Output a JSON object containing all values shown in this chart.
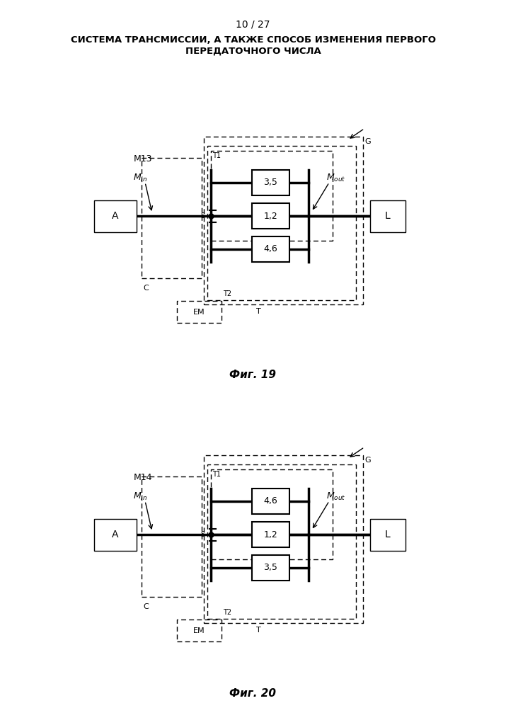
{
  "title_line1": "СИСТЕМА ТРАНСМИССИИ, А ТАКЖЕ СПОСОБ ИЗМЕНЕНИЯ ПЕРВОГО",
  "title_line2": "ПЕРЕДАТОЧНОГО ЧИСЛА",
  "page_label": "10 / 27",
  "fig19_label": "Фиг. 19",
  "fig20_label": "Фиг. 20",
  "bg_color": "#ffffff"
}
